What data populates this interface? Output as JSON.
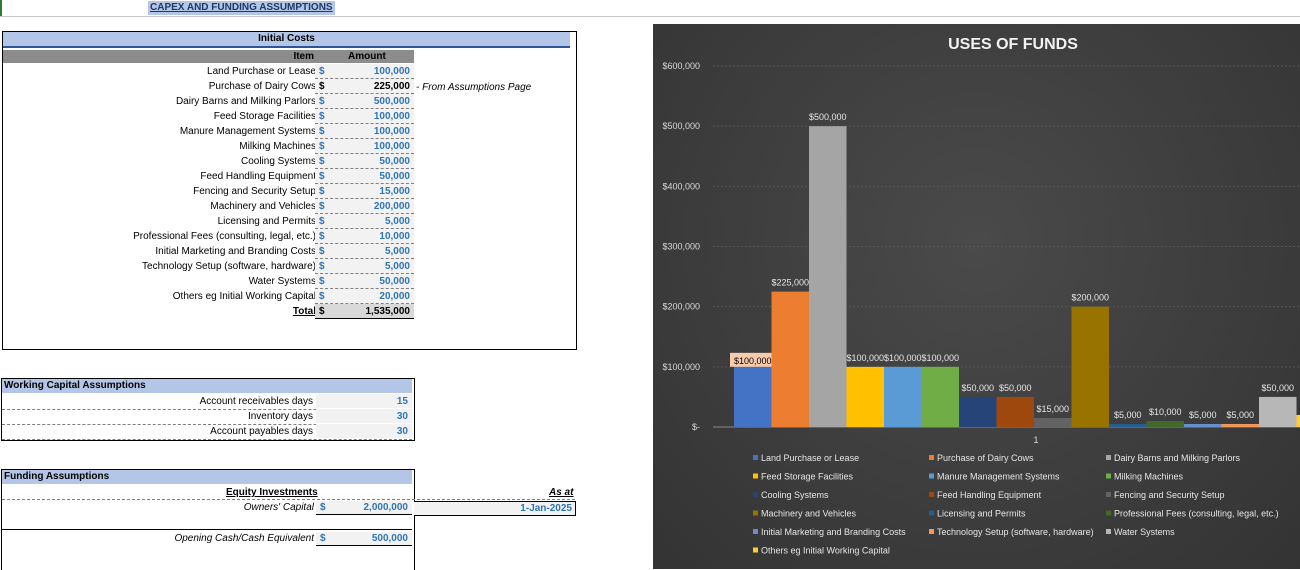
{
  "sheet": {
    "title": "CAPEX AND FUNDING ASSUMPTIONS"
  },
  "initial_costs": {
    "heading": "Initial Costs",
    "col_item": "Item",
    "col_amount": "Amount",
    "currency": "$",
    "note": "- From Assumptions Page",
    "rows": [
      {
        "label": "Land Purchase or Lease",
        "value": "100,000"
      },
      {
        "label": "Purchase of Dairy Cows",
        "value": "225,000"
      },
      {
        "label": "Dairy Barns and Milking Parlors",
        "value": "500,000"
      },
      {
        "label": "Feed Storage Facilities",
        "value": "100,000"
      },
      {
        "label": "Manure Management Systems",
        "value": "100,000"
      },
      {
        "label": "Milking Machines",
        "value": "100,000"
      },
      {
        "label": "Cooling Systems",
        "value": "50,000"
      },
      {
        "label": "Feed Handling Equipment",
        "value": "50,000"
      },
      {
        "label": "Fencing and Security Setup",
        "value": "15,000"
      },
      {
        "label": "Machinery and Vehicles",
        "value": "200,000"
      },
      {
        "label": "Licensing and Permits",
        "value": "5,000"
      },
      {
        "label": "Professional Fees (consulting, legal, etc.)",
        "value": "10,000"
      },
      {
        "label": "Initial Marketing and Branding Costs",
        "value": "5,000"
      },
      {
        "label": "Technology Setup (software, hardware)",
        "value": "5,000"
      },
      {
        "label": "Water Systems",
        "value": "50,000"
      },
      {
        "label": "Others eg Initial Working Capital",
        "value": "20,000"
      }
    ],
    "total_label": "Total",
    "total_value": "1,535,000"
  },
  "working_capital": {
    "heading": "Working Capital Assumptions",
    "rows": [
      {
        "label": "Account receivables days",
        "value": "15"
      },
      {
        "label": "Inventory days",
        "value": "30"
      },
      {
        "label": "Account payables days",
        "value": "30"
      }
    ]
  },
  "funding": {
    "heading": "Funding Assumptions",
    "equity_label": "Equity Investments",
    "as_at_label": "As at",
    "owners_label": "Owners' Capital",
    "owners_value": "2,000,000",
    "as_at_date": "1-Jan-2025",
    "opening_label": "Opening Cash/Cash Equivalent",
    "opening_value": "500,000",
    "currency": "$"
  },
  "chart_data": {
    "type": "bar",
    "title": "USES OF FUNDS",
    "categories": [
      "1"
    ],
    "ylim": [
      0,
      600000
    ],
    "y_ticks": [
      "$-",
      "$100,000",
      "$200,000",
      "$300,000",
      "$400,000",
      "$500,000",
      "$600,000"
    ],
    "grid": true,
    "legend": "bottom",
    "series": [
      {
        "name": "Land Purchase or Lease",
        "values": [
          100000
        ],
        "label": "$100,000",
        "color": "#4472c4"
      },
      {
        "name": "Purchase of Dairy Cows",
        "values": [
          225000
        ],
        "label": "$225,000",
        "color": "#ed7d31"
      },
      {
        "name": "Dairy Barns and Milking Parlors",
        "values": [
          500000
        ],
        "label": "$500,000",
        "color": "#a5a5a5"
      },
      {
        "name": "Feed Storage Facilities",
        "values": [
          100000
        ],
        "label": "$100,000",
        "color": "#ffc000"
      },
      {
        "name": "Manure Management Systems",
        "values": [
          100000
        ],
        "label": "$100,000",
        "color": "#5b9bd5"
      },
      {
        "name": "Milking Machines",
        "values": [
          100000
        ],
        "label": "$100,000",
        "color": "#70ad47"
      },
      {
        "name": "Cooling Systems",
        "values": [
          50000
        ],
        "label": "$50,000",
        "color": "#264478"
      },
      {
        "name": "Feed Handling Equipment",
        "values": [
          50000
        ],
        "label": "$50,000",
        "color": "#9e480e"
      },
      {
        "name": "Fencing and Security Setup",
        "values": [
          15000
        ],
        "label": "$15,000",
        "color": "#636363"
      },
      {
        "name": "Machinery and Vehicles",
        "values": [
          200000
        ],
        "label": "$200,000",
        "color": "#997300"
      },
      {
        "name": "Licensing and Permits",
        "values": [
          5000
        ],
        "label": "$5,000",
        "color": "#255e91"
      },
      {
        "name": "Professional Fees (consulting, legal, etc.)",
        "values": [
          10000
        ],
        "label": "$10,000",
        "color": "#43682b"
      },
      {
        "name": "Initial Marketing and Branding Costs",
        "values": [
          5000
        ],
        "label": "$5,000",
        "color": "#698ed0"
      },
      {
        "name": "Technology Setup (software, hardware)",
        "values": [
          5000
        ],
        "label": "$5,000",
        "color": "#f1975a"
      },
      {
        "name": "Water Systems",
        "values": [
          50000
        ],
        "label": "$50,000",
        "color": "#b7b7b7"
      },
      {
        "name": "Others eg Initial Working Capital",
        "values": [
          20000
        ],
        "label": "",
        "color": "#ffcd33"
      }
    ]
  }
}
